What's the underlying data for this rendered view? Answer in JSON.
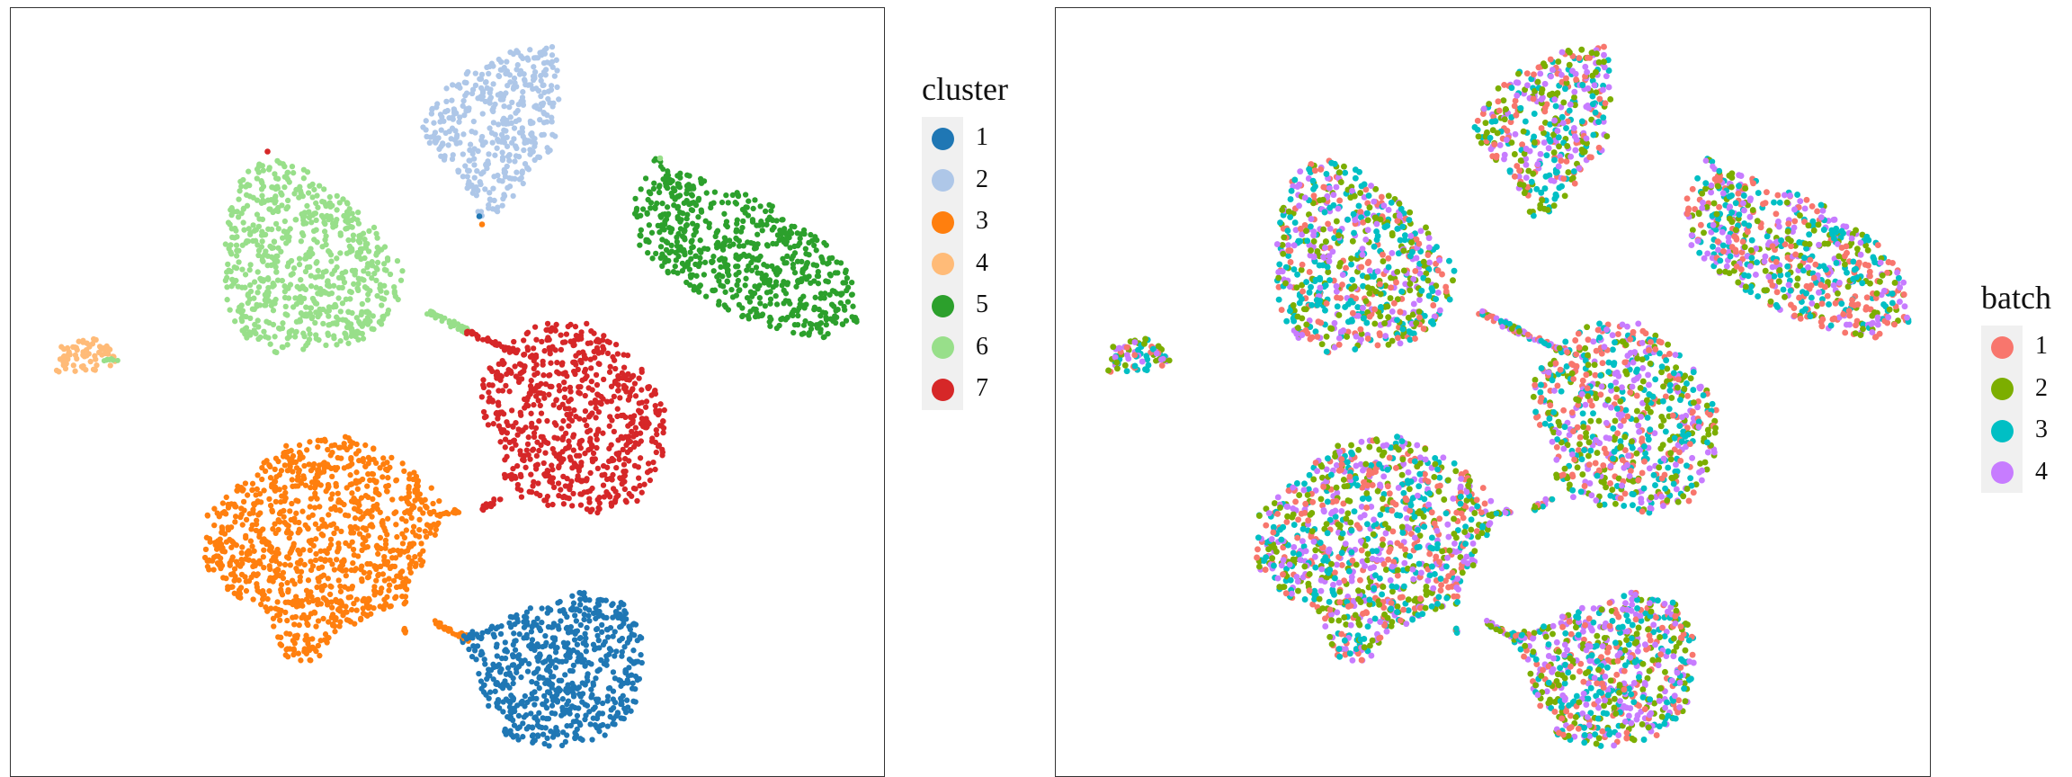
{
  "chart_data": [
    {
      "type": "scatter",
      "title": "",
      "xlabel": "",
      "ylabel": "",
      "axes_visible": false,
      "grid": false,
      "legend_placement": "right",
      "legend": {
        "title": "cluster",
        "entries": [
          {
            "label": "1",
            "color": "#1f77b4"
          },
          {
            "label": "2",
            "color": "#aec7e8"
          },
          {
            "label": "3",
            "color": "#ff7f0e"
          },
          {
            "label": "4",
            "color": "#ffbb78"
          },
          {
            "label": "5",
            "color": "#2ca02c"
          },
          {
            "label": "6",
            "color": "#98df8a"
          },
          {
            "label": "7",
            "color": "#d62728"
          }
        ]
      },
      "groups": [
        {
          "cluster": "1",
          "center": [
            0.64,
            -0.85
          ],
          "approx_points": 1400
        },
        {
          "cluster": "2",
          "center": [
            0.54,
            0.81
          ],
          "approx_points": 900
        },
        {
          "cluster": "3",
          "center": [
            -0.4,
            -0.42
          ],
          "approx_points": 2200
        },
        {
          "cluster": "4",
          "center": [
            -1.42,
            0.22
          ],
          "approx_points": 150
        },
        {
          "cluster": "5",
          "center": [
            1.35,
            0.43
          ],
          "approx_points": 1400
        },
        {
          "cluster": "6",
          "center": [
            -0.62,
            0.5
          ],
          "approx_points": 1500
        },
        {
          "cluster": "7",
          "center": [
            0.62,
            0.02
          ],
          "approx_points": 1500
        }
      ]
    },
    {
      "type": "scatter",
      "title": "",
      "xlabel": "",
      "ylabel": "",
      "axes_visible": false,
      "grid": false,
      "legend_placement": "right",
      "legend": {
        "title": "batch",
        "entries": [
          {
            "label": "1",
            "color": "#f8766d"
          },
          {
            "label": "2",
            "color": "#7cae00"
          },
          {
            "label": "3",
            "color": "#00bfc4"
          },
          {
            "label": "4",
            "color": "#c77cff"
          }
        ]
      },
      "mixing": "each batch is evenly mixed within every cluster of the embedding"
    }
  ]
}
